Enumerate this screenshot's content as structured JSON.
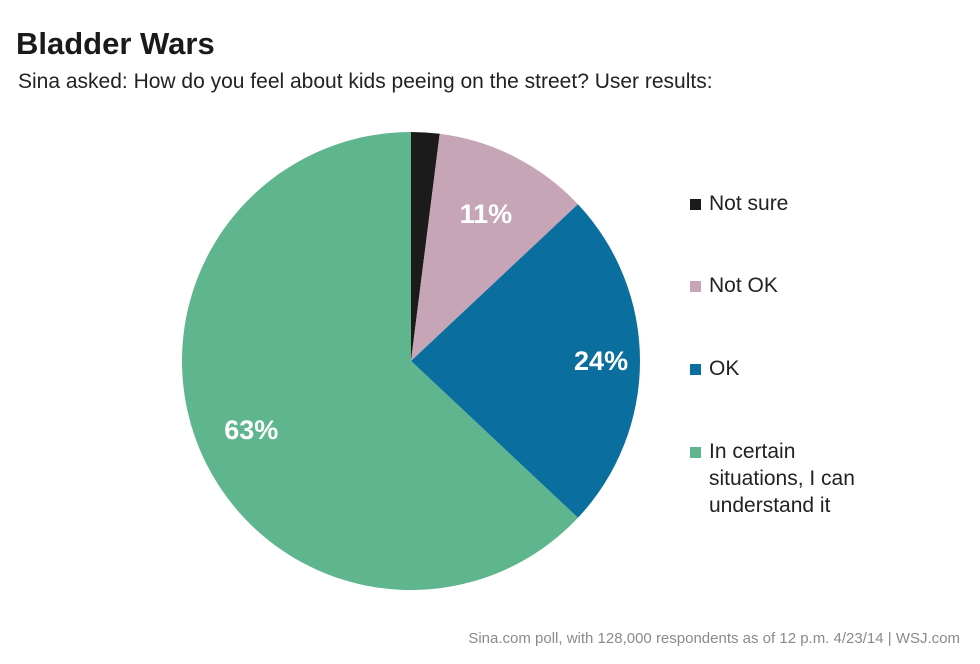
{
  "chart_data": {
    "type": "pie",
    "title": "Bladder Wars",
    "subtitle": "Sina asked: How do you feel about kids peeing on the street? User results:",
    "slices": [
      {
        "label": "Not sure",
        "value": 2,
        "color": "#1b1b1b",
        "data_label": ""
      },
      {
        "label": "Not OK",
        "value": 11,
        "color": "#c6a6b6",
        "data_label": "11%"
      },
      {
        "label": "OK",
        "value": 24,
        "color": "#0a6e9e",
        "data_label": "24%"
      },
      {
        "label": "In certain situations, I can understand it",
        "value": 63,
        "color": "#5eb58e",
        "data_label": "63%"
      }
    ],
    "legend": {
      "placement": "right",
      "lines": [
        [
          "Not sure"
        ],
        [
          "Not OK"
        ],
        [
          "OK"
        ],
        [
          "In certain",
          "situations, I can",
          "understand it"
        ]
      ]
    },
    "source": "Sina.com poll, with 128,000 respondents as of 12 p.m. 4/23/14  |  WSJ.com"
  }
}
